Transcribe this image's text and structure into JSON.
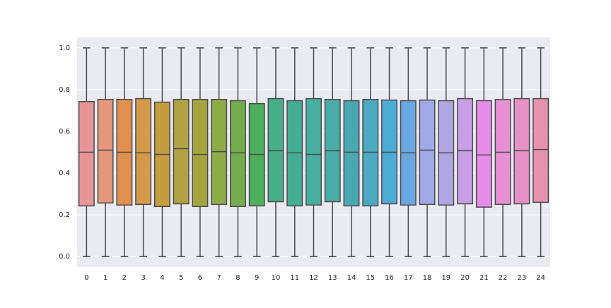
{
  "chart_data": {
    "type": "box",
    "categories": [
      "0",
      "1",
      "2",
      "3",
      "4",
      "5",
      "6",
      "7",
      "8",
      "9",
      "10",
      "11",
      "12",
      "13",
      "14",
      "15",
      "16",
      "17",
      "18",
      "19",
      "20",
      "21",
      "22",
      "23",
      "24"
    ],
    "whislo": [
      0,
      0,
      0,
      0,
      0,
      0,
      0,
      0,
      0,
      0,
      0,
      0,
      0,
      0,
      0,
      0,
      0,
      0,
      0,
      0,
      0,
      0,
      0,
      0,
      0
    ],
    "q1": [
      0.243,
      0.257,
      0.247,
      0.25,
      0.24,
      0.253,
      0.24,
      0.25,
      0.24,
      0.243,
      0.263,
      0.243,
      0.247,
      0.263,
      0.243,
      0.243,
      0.253,
      0.247,
      0.25,
      0.247,
      0.253,
      0.237,
      0.25,
      0.253,
      0.26
    ],
    "median": [
      0.5,
      0.51,
      0.5,
      0.497,
      0.49,
      0.517,
      0.49,
      0.503,
      0.497,
      0.49,
      0.507,
      0.497,
      0.49,
      0.507,
      0.5,
      0.5,
      0.5,
      0.497,
      0.51,
      0.497,
      0.507,
      0.487,
      0.5,
      0.507,
      0.513
    ],
    "q3": [
      0.743,
      0.753,
      0.753,
      0.757,
      0.74,
      0.753,
      0.753,
      0.753,
      0.747,
      0.733,
      0.757,
      0.747,
      0.757,
      0.753,
      0.747,
      0.753,
      0.75,
      0.747,
      0.75,
      0.747,
      0.757,
      0.747,
      0.753,
      0.757,
      0.757
    ],
    "whishi": [
      1,
      1,
      1,
      1,
      1,
      1,
      1,
      1,
      1,
      1,
      1,
      1,
      1,
      1,
      1,
      1,
      1,
      1,
      1,
      1,
      1,
      1,
      1,
      1,
      1
    ],
    "colors": [
      "#e8959a",
      "#e6977e",
      "#e08f4f",
      "#d39a4a",
      "#c59c3e",
      "#b3a244",
      "#a2a53e",
      "#8fab47",
      "#74ad4f",
      "#4eaf5a",
      "#47b08a",
      "#45ad94",
      "#48ae9f",
      "#4aaca8",
      "#4aa8b2",
      "#4aabc0",
      "#4dacd6",
      "#6aa6e0",
      "#9fa9e6",
      "#b1a5e4",
      "#c99ee6",
      "#e48ce8",
      "#e690d4",
      "#e690c6",
      "#e691b0"
    ],
    "ylim": [
      -0.05,
      1.05
    ],
    "yticks": [
      {
        "value": 0,
        "label": "0.0"
      },
      0.2,
      0.4,
      0.6,
      0.8,
      {
        "value": 1,
        "label": "1.0"
      }
    ],
    "grid": true
  }
}
